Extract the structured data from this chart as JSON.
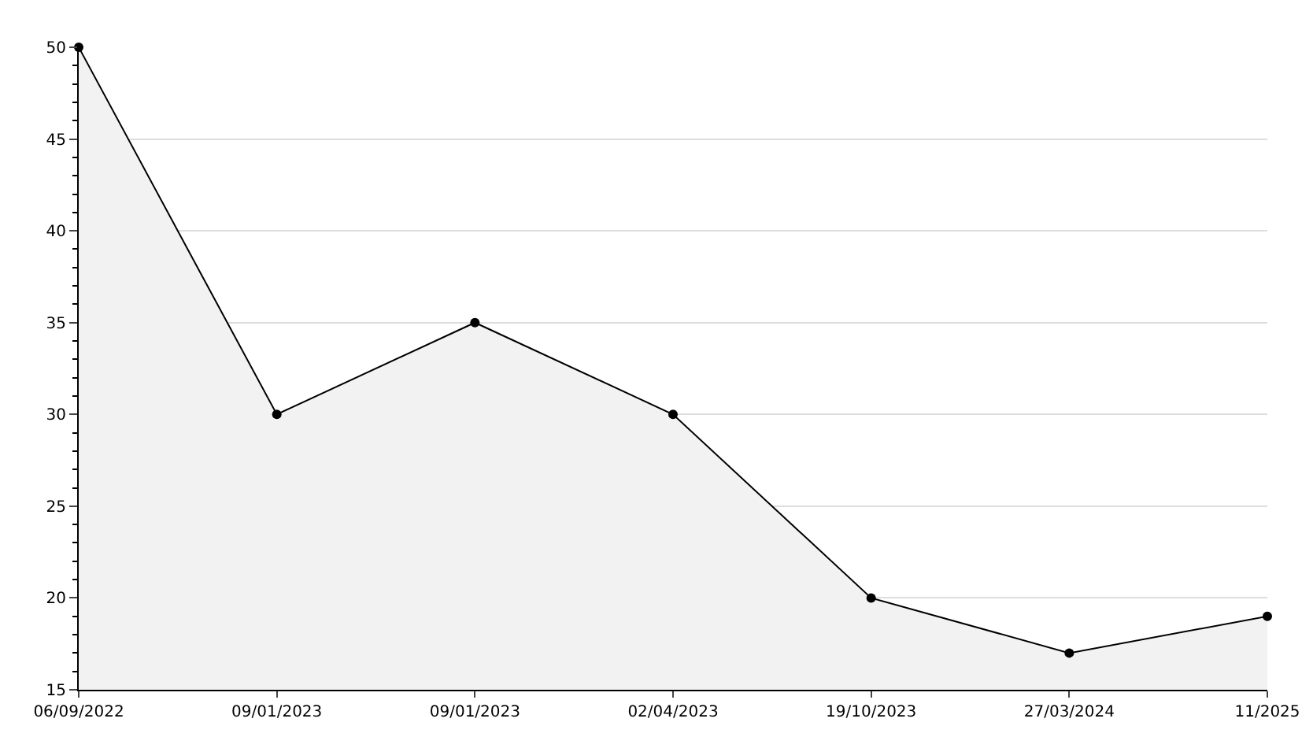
{
  "chart_data": {
    "type": "area",
    "categories": [
      "06/09/2022",
      "09/01/2023",
      "09/01/2023",
      "02/04/2023",
      "19/10/2023",
      "27/03/2024",
      "11/2025"
    ],
    "values": [
      50,
      30,
      35,
      30,
      20,
      17,
      19
    ],
    "color": "#000000",
    "ylim": [
      15,
      50
    ],
    "yticks": [
      15,
      20,
      25,
      30,
      35,
      40,
      45,
      50
    ],
    "grid": "y",
    "marker": "circle",
    "line_style": "solid"
  }
}
